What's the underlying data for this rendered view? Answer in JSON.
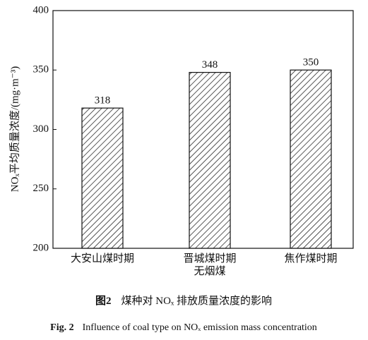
{
  "chart_data": {
    "type": "bar",
    "y_label": "NOₓ平均质量浓度/(mg·m⁻³)",
    "categories": [
      "大安山煤时期",
      "晋城煤时期\n无烟煤",
      "焦作煤时期"
    ],
    "values": [
      318,
      348,
      350
    ],
    "color": "#111111",
    "ylim": [
      200,
      400
    ],
    "yticks": [
      200,
      250,
      300,
      350,
      400
    ],
    "caption_label": "图2",
    "caption": "煤种对 NOₓ 排放质量浓度的影响",
    "caption_en_label": "Fig. 2",
    "caption_en": "Influence of coal type on NOₓ emission mass concentration"
  }
}
